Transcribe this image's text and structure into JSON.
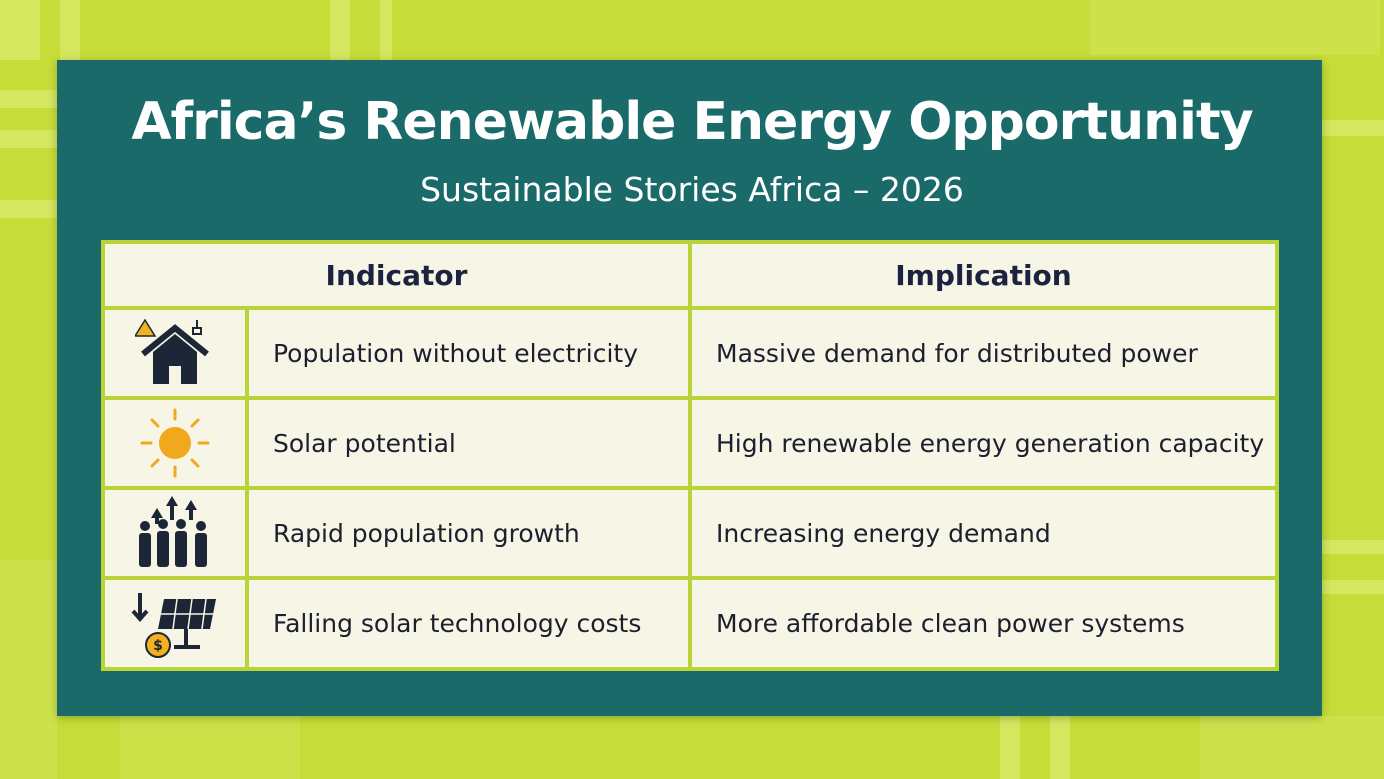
{
  "header": {
    "title": "Africa’s Renewable Energy Opportunity",
    "subtitle": "Sustainable Stories Africa – 2026"
  },
  "table": {
    "columns": [
      "Indicator",
      "Implication"
    ],
    "rows": [
      [
        "Population without electricity",
        "Massive demand for distributed power"
      ],
      [
        "Solar potential",
        "High renewable energy generation capacity"
      ],
      [
        "Rapid population growth",
        "Increasing energy demand"
      ],
      [
        "Falling solar technology costs",
        "More affordable clean power systems"
      ]
    ]
  }
}
